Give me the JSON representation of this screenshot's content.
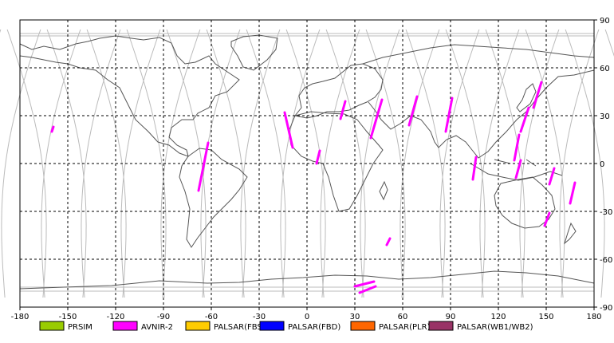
{
  "map": {
    "lon_ticks": [
      "-180",
      "-150",
      "-120",
      "-90",
      "-60",
      "-30",
      "0",
      "30",
      "60",
      "90",
      "120",
      "150",
      "180"
    ],
    "lat_ticks": [
      "90",
      "60",
      "30",
      "0",
      "-30",
      "-60",
      "-90"
    ],
    "lon_range": [
      -180,
      180
    ],
    "lat_range": [
      -90,
      90
    ],
    "grid": "dashed",
    "colors": {
      "frame": "#000000",
      "grid": "#000000",
      "coastline": "#555555",
      "orbit_track": "#bbbbbb",
      "observation": "#ff00ff"
    }
  },
  "legend": {
    "items": [
      {
        "label": "PRSIM",
        "color": "#99cc00"
      },
      {
        "label": "AVNIR-2",
        "color": "#ff00ff"
      },
      {
        "label": "PALSAR(FBS)",
        "color": "#ffcc00"
      },
      {
        "label": "PALSAR(FBD)",
        "color": "#0000ff"
      },
      {
        "label": "PALSAR(PLR)",
        "color": "#ff6600"
      },
      {
        "label": "PALSAR(WB1/WB2)",
        "color": "#993366"
      }
    ]
  },
  "observations": {
    "sensor": "AVNIR-2",
    "segments": [
      {
        "lon": [
          -160,
          -159
        ],
        "lat": [
          20,
          23
        ]
      },
      {
        "lon": [
          -9,
          -14
        ],
        "lat": [
          10,
          32
        ]
      },
      {
        "lon": [
          -68,
          -62
        ],
        "lat": [
          -17,
          13
        ]
      },
      {
        "lon": [
          6,
          8
        ],
        "lat": [
          0,
          8
        ]
      },
      {
        "lon": [
          21,
          24
        ],
        "lat": [
          28,
          39
        ]
      },
      {
        "lon": [
          40,
          47
        ],
        "lat": [
          16,
          40
        ]
      },
      {
        "lon": [
          64,
          69
        ],
        "lat": [
          24,
          42
        ]
      },
      {
        "lon": [
          87,
          91
        ],
        "lat": [
          20,
          41
        ]
      },
      {
        "lon": [
          104,
          106
        ],
        "lat": [
          -10,
          4
        ]
      },
      {
        "lon": [
          130,
          133
        ],
        "lat": [
          2,
          18
        ]
      },
      {
        "lon": [
          134,
          139
        ],
        "lat": [
          20,
          35
        ]
      },
      {
        "lon": [
          142,
          147
        ],
        "lat": [
          35,
          51
        ]
      },
      {
        "lon": [
          131,
          134
        ],
        "lat": [
          -9,
          2
        ]
      },
      {
        "lon": [
          152,
          155
        ],
        "lat": [
          -13,
          -3
        ]
      },
      {
        "lon": [
          165,
          168
        ],
        "lat": [
          -25,
          -12
        ]
      },
      {
        "lon": [
          149,
          152
        ],
        "lat": [
          -39,
          -31
        ]
      },
      {
        "lon": [
          50,
          52
        ],
        "lat": [
          -51,
          -47
        ]
      },
      {
        "lon": [
          30,
          42
        ],
        "lat": [
          -77,
          -74
        ]
      },
      {
        "lon": [
          33,
          43
        ],
        "lat": [
          -81,
          -77
        ]
      }
    ]
  }
}
